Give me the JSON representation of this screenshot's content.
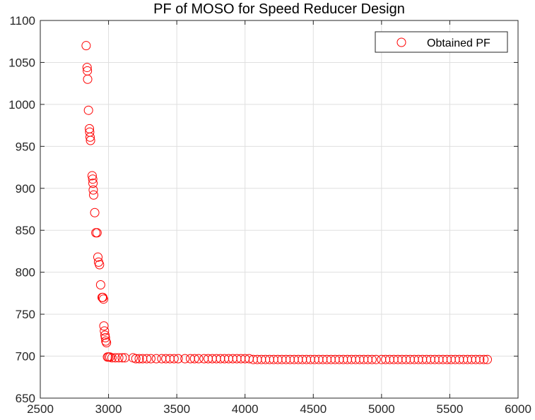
{
  "chart_data": {
    "type": "scatter",
    "title": "PF of MOSO for Speed Reducer Design",
    "xlabel": "",
    "ylabel": "",
    "xlim": [
      2500,
      6000
    ],
    "ylim": [
      650,
      1100
    ],
    "xticks": [
      2500,
      3000,
      3500,
      4000,
      4500,
      5000,
      5500,
      6000
    ],
    "yticks": [
      650,
      700,
      750,
      800,
      850,
      900,
      950,
      1000,
      1050,
      1100
    ],
    "grid": true,
    "legend": {
      "placement": "top-right",
      "entries": [
        "Obtained PF"
      ]
    },
    "series": [
      {
        "name": "Obtained PF",
        "color": "#ff0000",
        "marker": "open-circle",
        "points": [
          [
            2836,
            1070
          ],
          [
            2843,
            1044
          ],
          [
            2845,
            1040
          ],
          [
            2847,
            1030
          ],
          [
            2853,
            993
          ],
          [
            2860,
            971
          ],
          [
            2862,
            967
          ],
          [
            2865,
            961
          ],
          [
            2868,
            957
          ],
          [
            2880,
            915
          ],
          [
            2884,
            911
          ],
          [
            2886,
            906
          ],
          [
            2888,
            898
          ],
          [
            2891,
            892
          ],
          [
            2899,
            871
          ],
          [
            2907,
            847
          ],
          [
            2916,
            847
          ],
          [
            2922,
            818
          ],
          [
            2927,
            812
          ],
          [
            2934,
            809
          ],
          [
            2942,
            785
          ],
          [
            2953,
            770
          ],
          [
            2958,
            770
          ],
          [
            2963,
            768
          ],
          [
            2966,
            736
          ],
          [
            2970,
            730
          ],
          [
            2974,
            725
          ],
          [
            2977,
            722
          ],
          [
            2980,
            718
          ],
          [
            2985,
            716
          ],
          [
            2992,
            699
          ],
          [
            3000,
            699
          ],
          [
            3010,
            699
          ],
          [
            3025,
            698
          ],
          [
            3050,
            698
          ],
          [
            3075,
            698
          ],
          [
            3100,
            698
          ],
          [
            3120,
            698
          ],
          [
            3180,
            698
          ],
          [
            3200,
            697
          ],
          [
            3225,
            697
          ],
          [
            3250,
            697
          ],
          [
            3280,
            697
          ],
          [
            3310,
            697
          ],
          [
            3350,
            697
          ],
          [
            3390,
            697
          ],
          [
            3420,
            697
          ],
          [
            3450,
            697
          ],
          [
            3480,
            697
          ],
          [
            3510,
            697
          ],
          [
            3560,
            697
          ],
          [
            3600,
            697
          ],
          [
            3630,
            697
          ],
          [
            3660,
            697
          ],
          [
            3700,
            697
          ],
          [
            3730,
            697
          ],
          [
            3760,
            697
          ],
          [
            3790,
            697
          ],
          [
            3820,
            697
          ],
          [
            3850,
            697
          ],
          [
            3880,
            697
          ],
          [
            3910,
            697
          ],
          [
            3940,
            697
          ],
          [
            3970,
            697
          ],
          [
            4000,
            697
          ],
          [
            4030,
            697
          ],
          [
            4060,
            696
          ],
          [
            4090,
            696
          ],
          [
            4120,
            696
          ],
          [
            4150,
            696
          ],
          [
            4180,
            696
          ],
          [
            4210,
            696
          ],
          [
            4240,
            696
          ],
          [
            4270,
            696
          ],
          [
            4300,
            696
          ],
          [
            4330,
            696
          ],
          [
            4360,
            696
          ],
          [
            4390,
            696
          ],
          [
            4420,
            696
          ],
          [
            4450,
            696
          ],
          [
            4480,
            696
          ],
          [
            4510,
            696
          ],
          [
            4540,
            696
          ],
          [
            4570,
            696
          ],
          [
            4600,
            696
          ],
          [
            4630,
            696
          ],
          [
            4660,
            696
          ],
          [
            4690,
            696
          ],
          [
            4720,
            696
          ],
          [
            4750,
            696
          ],
          [
            4780,
            696
          ],
          [
            4810,
            696
          ],
          [
            4840,
            696
          ],
          [
            4870,
            696
          ],
          [
            4900,
            696
          ],
          [
            4930,
            696
          ],
          [
            4960,
            696
          ],
          [
            5000,
            696
          ],
          [
            5030,
            696
          ],
          [
            5060,
            696
          ],
          [
            5090,
            696
          ],
          [
            5120,
            696
          ],
          [
            5150,
            696
          ],
          [
            5180,
            696
          ],
          [
            5210,
            696
          ],
          [
            5240,
            696
          ],
          [
            5270,
            696
          ],
          [
            5300,
            696
          ],
          [
            5330,
            696
          ],
          [
            5360,
            696
          ],
          [
            5390,
            696
          ],
          [
            5420,
            696
          ],
          [
            5450,
            696
          ],
          [
            5480,
            696
          ],
          [
            5510,
            696
          ],
          [
            5540,
            696
          ],
          [
            5570,
            696
          ],
          [
            5600,
            696
          ],
          [
            5630,
            696
          ],
          [
            5660,
            696
          ],
          [
            5690,
            696
          ],
          [
            5720,
            696
          ],
          [
            5750,
            696
          ],
          [
            5775,
            696
          ]
        ]
      }
    ]
  }
}
